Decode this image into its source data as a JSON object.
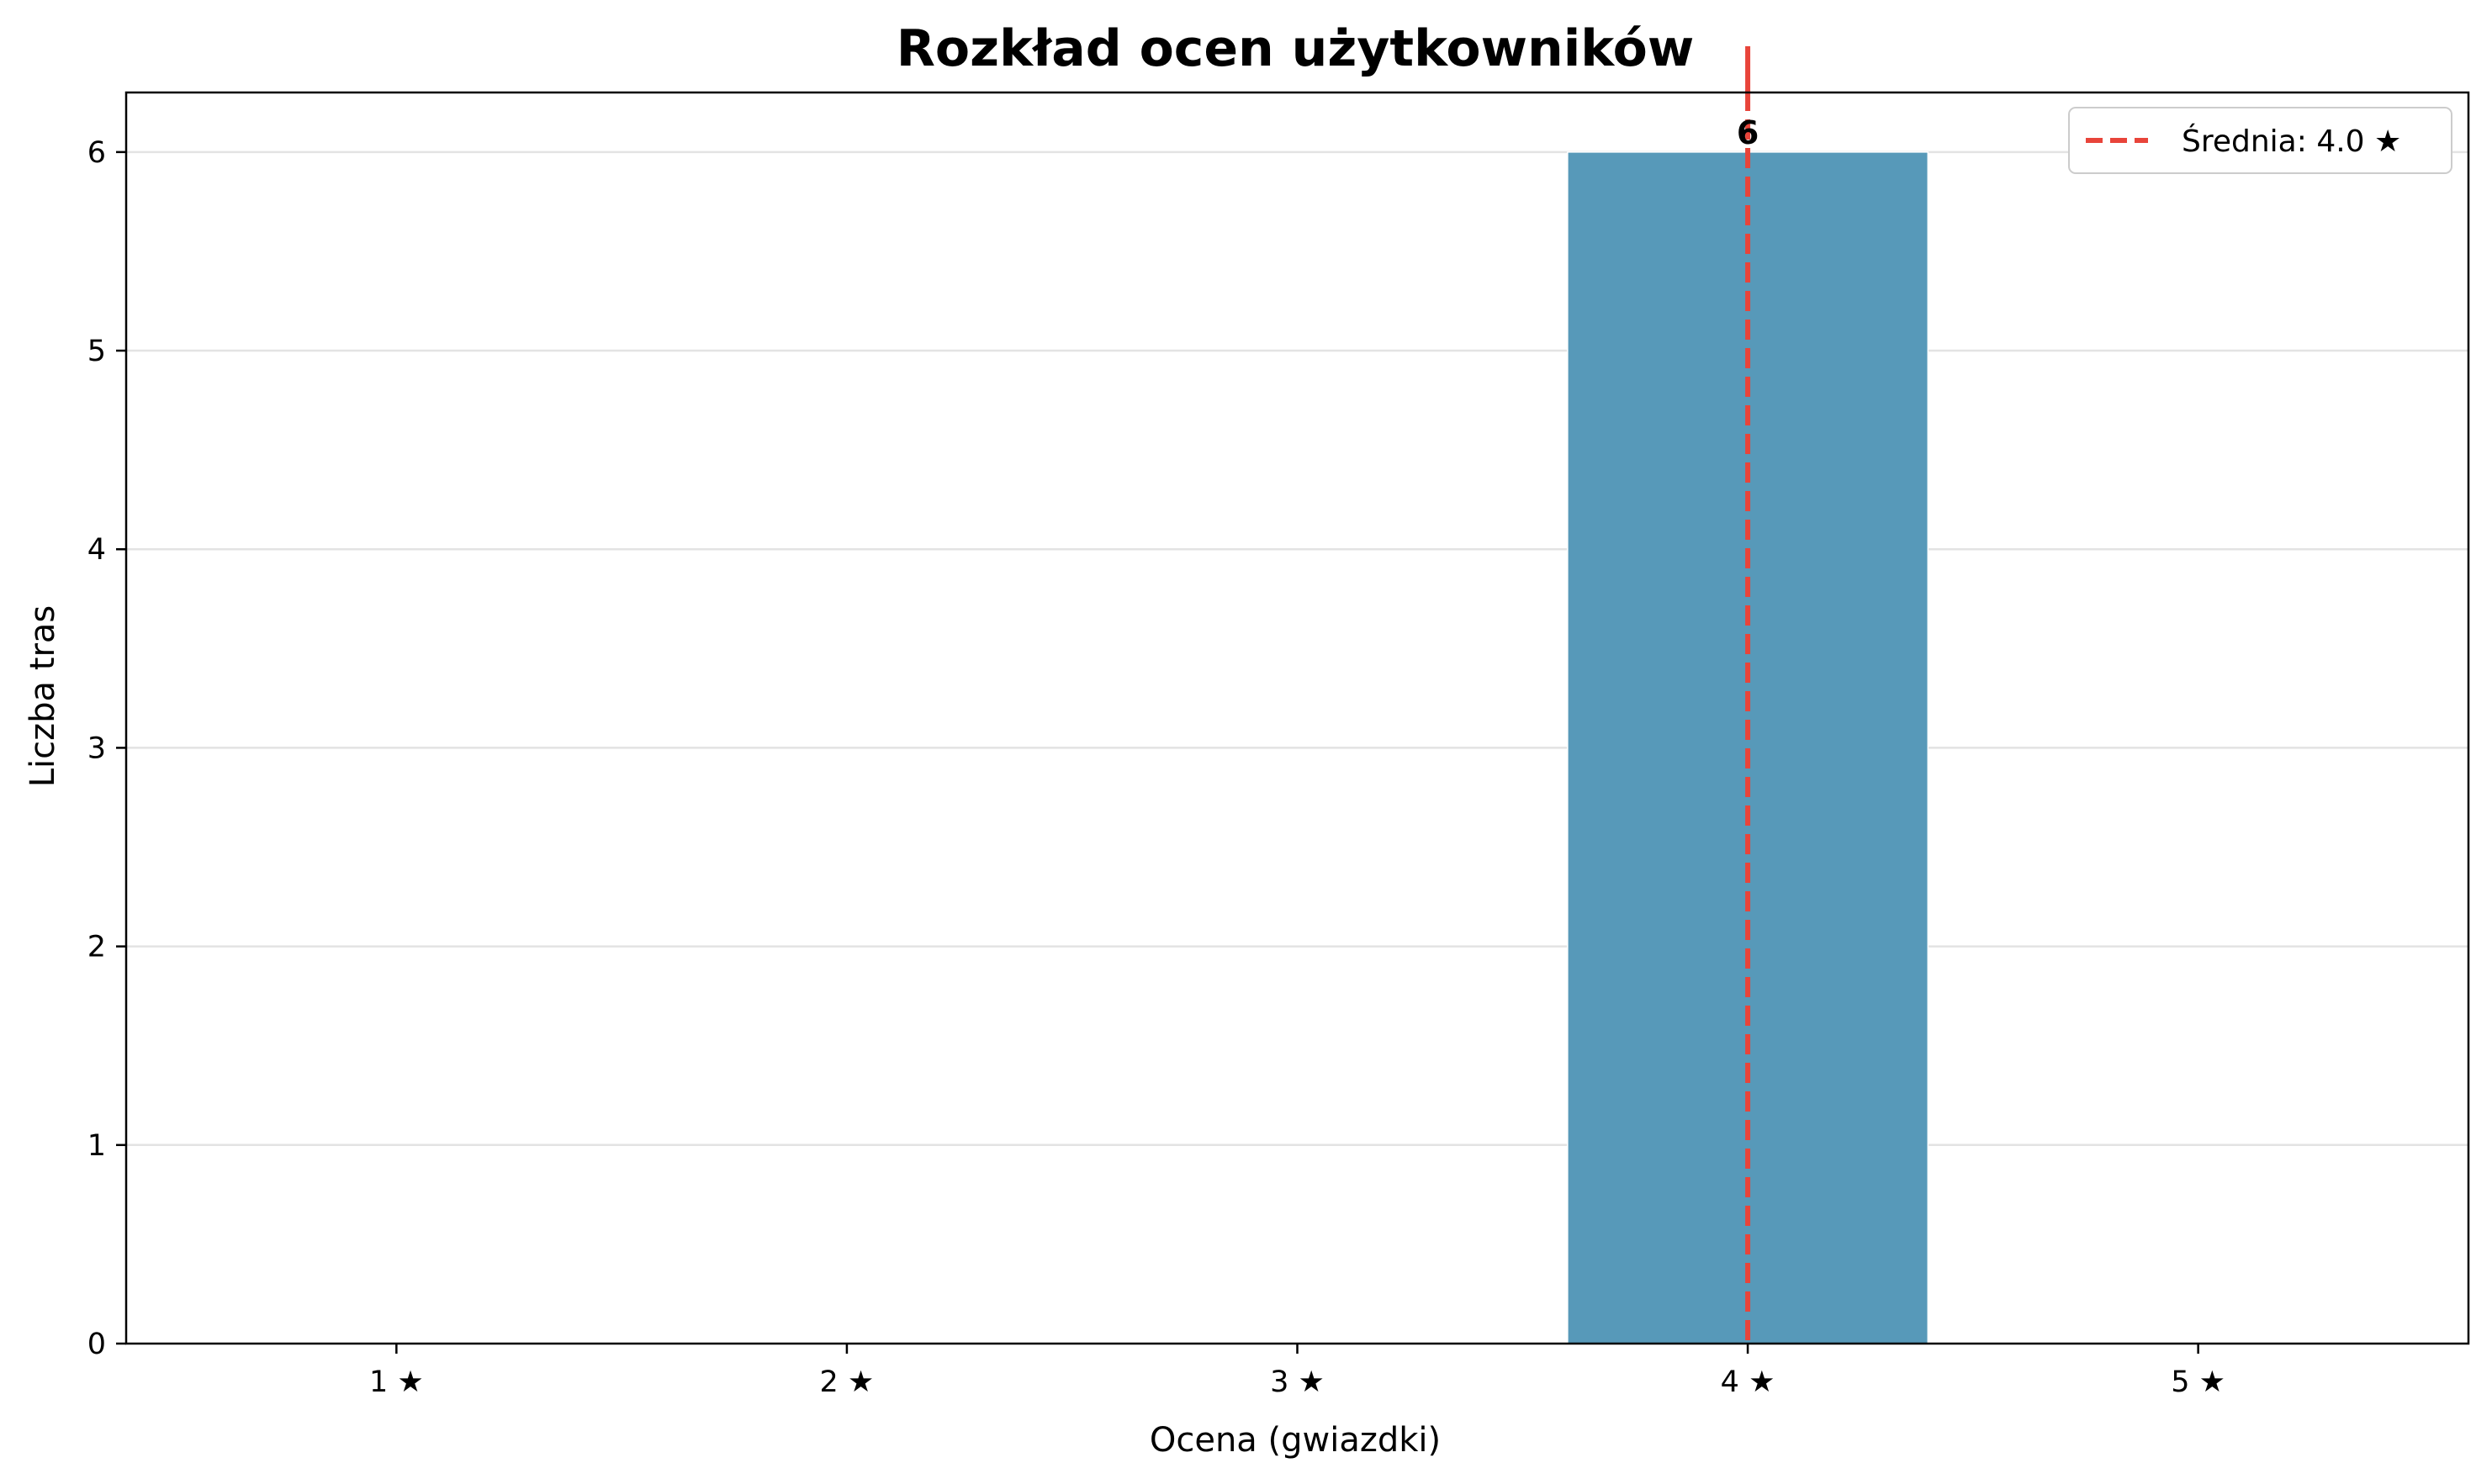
{
  "chart_data": {
    "type": "bar",
    "title": "Rozkład ocen użytkowników",
    "xlabel": "Ocena (gwiazdki)",
    "ylabel": "Liczba tras",
    "categories": [
      "1 ★",
      "2 ★",
      "3 ★",
      "4 ★",
      "5 ★"
    ],
    "x": [
      1,
      2,
      3,
      4,
      5
    ],
    "values": [
      0,
      0,
      0,
      6,
      0
    ],
    "data_labels": [
      {
        "x": 4,
        "y": 6,
        "text": "6"
      }
    ],
    "xlim": [
      0.4,
      5.6
    ],
    "ylim": [
      0,
      6.3
    ],
    "yticks": [
      0,
      1,
      2,
      3,
      4,
      5,
      6
    ],
    "grid": "y",
    "bar_color": "#5799b9",
    "mean_line": {
      "value": 4.0,
      "color": "#e8443a",
      "style": "dashed",
      "label": "Średnia: 4.0 ★"
    },
    "legend": {
      "position": "top-right"
    }
  }
}
